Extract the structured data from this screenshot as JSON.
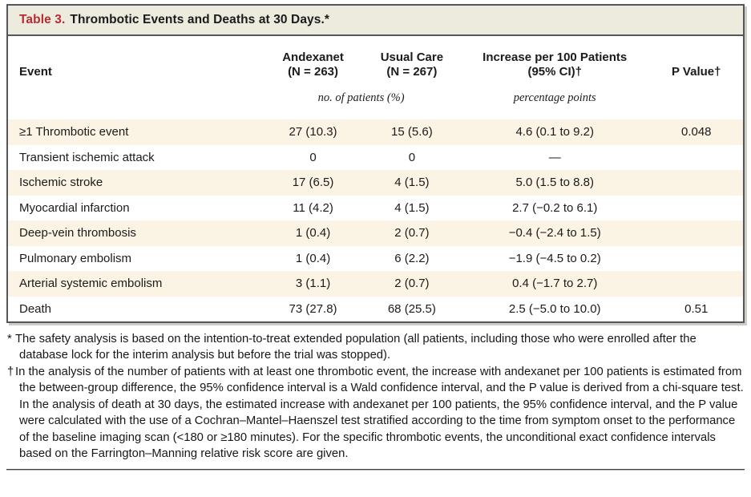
{
  "title": {
    "label": "Table 3.",
    "text": "Thrombotic Events and Deaths at 30 Days.*"
  },
  "table": {
    "columns": [
      {
        "label": "Event"
      },
      {
        "label": "Andexanet",
        "sub": "(N = 263)"
      },
      {
        "label": "Usual Care",
        "sub": "(N = 267)"
      },
      {
        "label": "Increase per 100 Patients",
        "sub": "(95% CI)†"
      },
      {
        "label": "P Value†"
      }
    ],
    "units": {
      "counts": "no. of patients (%)",
      "increase": "percentage points"
    },
    "rows": [
      {
        "event": "≥1 Thrombotic event",
        "andexanet": "27 (10.3)",
        "usual_care": "15 (5.6)",
        "increase": "4.6 (0.1 to 9.2)",
        "p_value": "0.048"
      },
      {
        "event": "Transient ischemic attack",
        "andexanet": "0",
        "usual_care": "0",
        "increase": "—",
        "p_value": ""
      },
      {
        "event": "Ischemic stroke",
        "andexanet": "17 (6.5)",
        "usual_care": "4 (1.5)",
        "increase": "5.0 (1.5 to 8.8)",
        "p_value": ""
      },
      {
        "event": "Myocardial infarction",
        "andexanet": "11 (4.2)",
        "usual_care": "4 (1.5)",
        "increase": "2.7 (−0.2 to 6.1)",
        "p_value": ""
      },
      {
        "event": "Deep-vein thrombosis",
        "andexanet": "1 (0.4)",
        "usual_care": "2 (0.7)",
        "increase": "−0.4 (−2.4 to 1.5)",
        "p_value": ""
      },
      {
        "event": "Pulmonary embolism",
        "andexanet": "1 (0.4)",
        "usual_care": "6 (2.2)",
        "increase": "−1.9 (−4.5 to 0.2)",
        "p_value": ""
      },
      {
        "event": "Arterial systemic embolism",
        "andexanet": "3 (1.1)",
        "usual_care": "2 (0.7)",
        "increase": "0.4 (−1.7 to 2.7)",
        "p_value": ""
      },
      {
        "event": "Death",
        "andexanet": "73 (27.8)",
        "usual_care": "68 (25.5)",
        "increase": "2.5 (−5.0 to 10.0)",
        "p_value": "0.51"
      }
    ]
  },
  "footnotes": [
    {
      "marker": "*",
      "text": "The safety analysis is based on the intention-to-treat extended population (all patients, including those who were enrolled after the database lock for the interim analysis but before the trial was stopped)."
    },
    {
      "marker": "†",
      "text": "In the analysis of the number of patients with at least one thrombotic event, the increase with andexanet per 100 patients is estimated from the between-group difference, the 95% confidence interval is a Wald confidence interval, and the P value is derived from a chi-square test. In the analysis of death at 30 days, the estimated increase with andexanet per 100 patients, the 95% confidence interval, and the P value were calculated with the use of a Cochran–Mantel–Haenszel test stratified according to the time from symptom onset to the performance of the baseline imaging scan (<180 or ≥180 minutes). For the specific thrombotic events, the unconditional exact confidence intervals based on the Farrington–Manning relative risk score are given."
    }
  ],
  "colors": {
    "accent_red": "#b72c32",
    "panel_bg": "#edeade",
    "row_shade": "#fbf3e3",
    "border_dark": "#55565a"
  }
}
